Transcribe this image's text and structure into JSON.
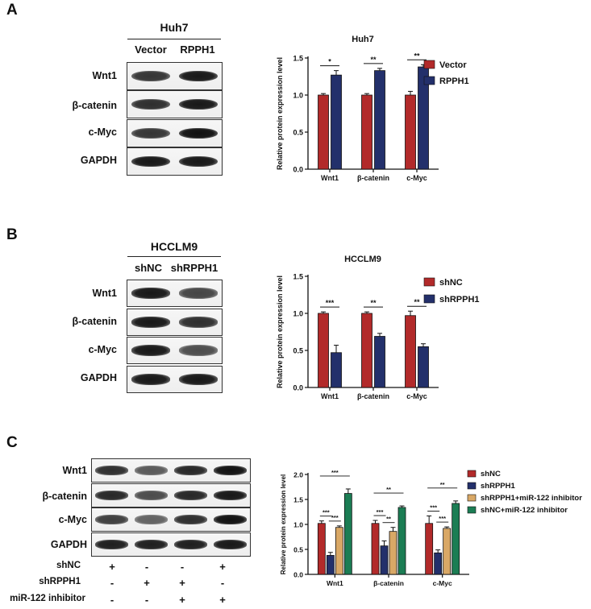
{
  "panels": [
    {
      "letter": "A",
      "cell_line": "Huh7",
      "lanes": [
        "Vector",
        "RPPH1"
      ],
      "proteins": [
        "Wnt1",
        "β-catenin",
        "c-Myc",
        "GAPDH"
      ],
      "bands": [
        [
          0.75,
          0.95
        ],
        [
          0.8,
          0.95
        ],
        [
          0.75,
          1.0
        ],
        [
          0.95,
          0.95
        ]
      ]
    },
    {
      "letter": "B",
      "cell_line": "HCCLM9",
      "lanes": [
        "shNC",
        "shRPPH1"
      ],
      "proteins": [
        "Wnt1",
        "β-catenin",
        "c-Myc",
        "GAPDH"
      ],
      "bands": [
        [
          0.95,
          0.65
        ],
        [
          0.95,
          0.8
        ],
        [
          0.95,
          0.6
        ],
        [
          0.95,
          0.95
        ]
      ]
    },
    {
      "letter": "C",
      "proteins": [
        "Wnt1",
        "β-catenin",
        "c-Myc",
        "GAPDH"
      ],
      "bands": [
        [
          0.8,
          0.5,
          0.85,
          1.0
        ],
        [
          0.85,
          0.6,
          0.85,
          0.95
        ],
        [
          0.7,
          0.45,
          0.8,
          1.0
        ],
        [
          0.9,
          0.9,
          0.9,
          0.95
        ]
      ],
      "treatments": [
        {
          "label": "shNC",
          "signs": [
            "+",
            "-",
            "-",
            "+"
          ]
        },
        {
          "label": "shRPPH1",
          "signs": [
            "-",
            "+",
            "+",
            "-"
          ]
        },
        {
          "label": "miR-122 inhibitor",
          "signs": [
            "-",
            "-",
            "+",
            "+"
          ]
        }
      ]
    }
  ],
  "colors": {
    "red": "#b22a2a",
    "navy": "#23306b",
    "tan": "#d9a866",
    "green": "#1b7d54"
  },
  "chart_data": [
    {
      "type": "bar",
      "title": "Huh7",
      "ylabel": "Relative protein expression level",
      "categories": [
        "Wnt1",
        "β-catenin",
        "c-Myc"
      ],
      "ylim": [
        0,
        1.5
      ],
      "yticks": [
        "0.0",
        "0.5",
        "1.0",
        "1.5"
      ],
      "series": [
        {
          "name": "Vector",
          "color": "#b22a2a",
          "values": [
            1.0,
            1.0,
            1.0
          ],
          "errors": [
            0.02,
            0.02,
            0.05
          ]
        },
        {
          "name": "RPPH1",
          "color": "#23306b",
          "values": [
            1.27,
            1.33,
            1.38
          ],
          "errors": [
            0.06,
            0.03,
            0.03
          ]
        }
      ],
      "significance": [
        "*",
        "**",
        "**"
      ],
      "legend": "top-right"
    },
    {
      "type": "bar",
      "title": "HCCLM9",
      "ylabel": "Relative protein expression level",
      "categories": [
        "Wnt1",
        "β-catenin",
        "c-Myc"
      ],
      "ylim": [
        0,
        1.5
      ],
      "yticks": [
        "0.0",
        "0.5",
        "1.0",
        "1.5"
      ],
      "series": [
        {
          "name": "shNC",
          "color": "#b22a2a",
          "values": [
            1.0,
            1.0,
            0.97
          ],
          "errors": [
            0.02,
            0.02,
            0.06
          ]
        },
        {
          "name": "shRPPH1",
          "color": "#23306b",
          "values": [
            0.47,
            0.69,
            0.55
          ],
          "errors": [
            0.1,
            0.04,
            0.04
          ]
        }
      ],
      "significance": [
        "***",
        "**",
        "**"
      ],
      "legend": "top-right"
    },
    {
      "type": "bar",
      "title": "",
      "ylabel": "Relative protein expression level",
      "categories": [
        "Wnt1",
        "β-catenin",
        "c-Myc"
      ],
      "ylim": [
        0,
        2.0
      ],
      "yticks": [
        "0.0",
        "0.5",
        "1.0",
        "1.5",
        "2.0"
      ],
      "series": [
        {
          "name": "shNC",
          "color": "#b22a2a",
          "values": [
            1.02,
            1.02,
            1.02
          ],
          "errors": [
            0.05,
            0.06,
            0.15
          ]
        },
        {
          "name": "shRPPH1",
          "color": "#23306b",
          "values": [
            0.38,
            0.57,
            0.43
          ],
          "errors": [
            0.06,
            0.1,
            0.06
          ]
        },
        {
          "name": "shRPPH1+miR-122 inhibitor",
          "color": "#d9a866",
          "values": [
            0.94,
            0.86,
            0.92
          ],
          "errors": [
            0.03,
            0.08,
            0.03
          ]
        },
        {
          "name": "shNC+miR-122 inhibitor",
          "color": "#1b7d54",
          "values": [
            1.62,
            1.34,
            1.42
          ],
          "errors": [
            0.09,
            0.03,
            0.05
          ]
        }
      ],
      "brackets": [
        {
          "group": 0,
          "from": 0,
          "to": 1,
          "label": "***",
          "level": 0
        },
        {
          "group": 0,
          "from": 1,
          "to": 2,
          "label": "***",
          "level": 0
        },
        {
          "group": 0,
          "from": 0,
          "to": 3,
          "label": "***",
          "level": 1
        },
        {
          "group": 1,
          "from": 0,
          "to": 1,
          "label": "***",
          "level": 0
        },
        {
          "group": 1,
          "from": 1,
          "to": 2,
          "label": "**",
          "level": 0
        },
        {
          "group": 1,
          "from": 0,
          "to": 3,
          "label": "**",
          "level": 1
        },
        {
          "group": 2,
          "from": 0,
          "to": 1,
          "label": "***",
          "level": 0
        },
        {
          "group": 2,
          "from": 1,
          "to": 2,
          "label": "***",
          "level": 0
        },
        {
          "group": 2,
          "from": 0,
          "to": 3,
          "label": "**",
          "level": 1
        }
      ],
      "legend": "top-right"
    }
  ]
}
